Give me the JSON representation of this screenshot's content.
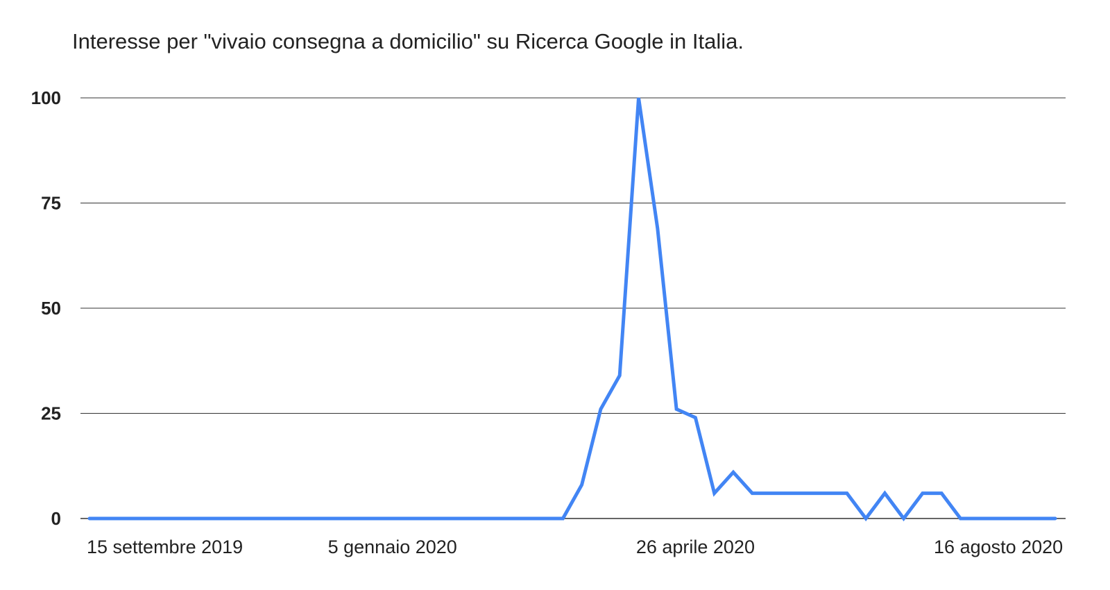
{
  "chart_data": {
    "type": "line",
    "title": "Interesse per \"vivaio consegna a domicilio\" su Ricerca Google in Italia.",
    "xlabel": "",
    "ylabel": "",
    "ylim": [
      0,
      100
    ],
    "yticks": [
      "0",
      "25",
      "50",
      "75",
      "100"
    ],
    "xtick_labels": [
      "15 settembre 2019",
      "5 gennaio 2020",
      "26 aprile 2020",
      "16 agosto 2020"
    ],
    "grid": "horizontal",
    "line_color": "#4285f4",
    "series": [
      {
        "values": [
          0,
          0,
          0,
          0,
          0,
          0,
          0,
          0,
          0,
          0,
          0,
          0,
          0,
          0,
          0,
          0,
          0,
          0,
          0,
          0,
          0,
          0,
          0,
          0,
          0,
          0,
          8,
          26,
          34,
          100,
          69,
          26,
          24,
          6,
          11,
          6,
          6,
          6,
          6,
          6,
          6,
          0,
          6,
          0,
          6,
          6,
          0,
          0,
          0,
          0,
          0,
          0
        ]
      }
    ]
  }
}
